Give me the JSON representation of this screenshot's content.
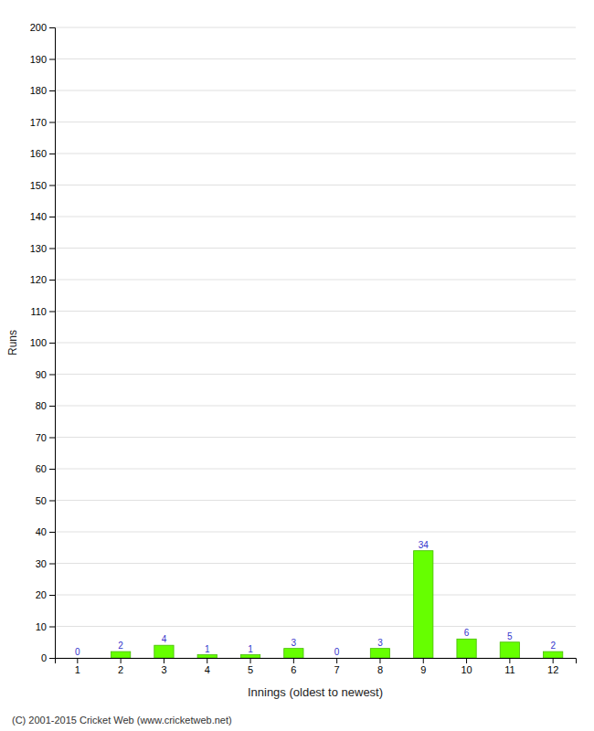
{
  "chart_data": {
    "type": "bar",
    "categories": [
      "1",
      "2",
      "3",
      "4",
      "5",
      "6",
      "7",
      "8",
      "9",
      "10",
      "11",
      "12"
    ],
    "values": [
      0,
      2,
      4,
      1,
      1,
      3,
      0,
      3,
      34,
      6,
      5,
      2
    ],
    "color": "#66ff00",
    "xlabel": "Innings (oldest to newest)",
    "ylabel": "Runs",
    "ylim": [
      0,
      200
    ],
    "yticks": [
      0,
      10,
      20,
      30,
      40,
      50,
      60,
      70,
      80,
      90,
      100,
      110,
      120,
      130,
      140,
      150,
      160,
      170,
      180,
      190,
      200
    ],
    "grid": true,
    "data_labels": true,
    "annotations": [
      "(C) 2001-2015 Cricket Web (www.cricketweb.net)"
    ]
  }
}
